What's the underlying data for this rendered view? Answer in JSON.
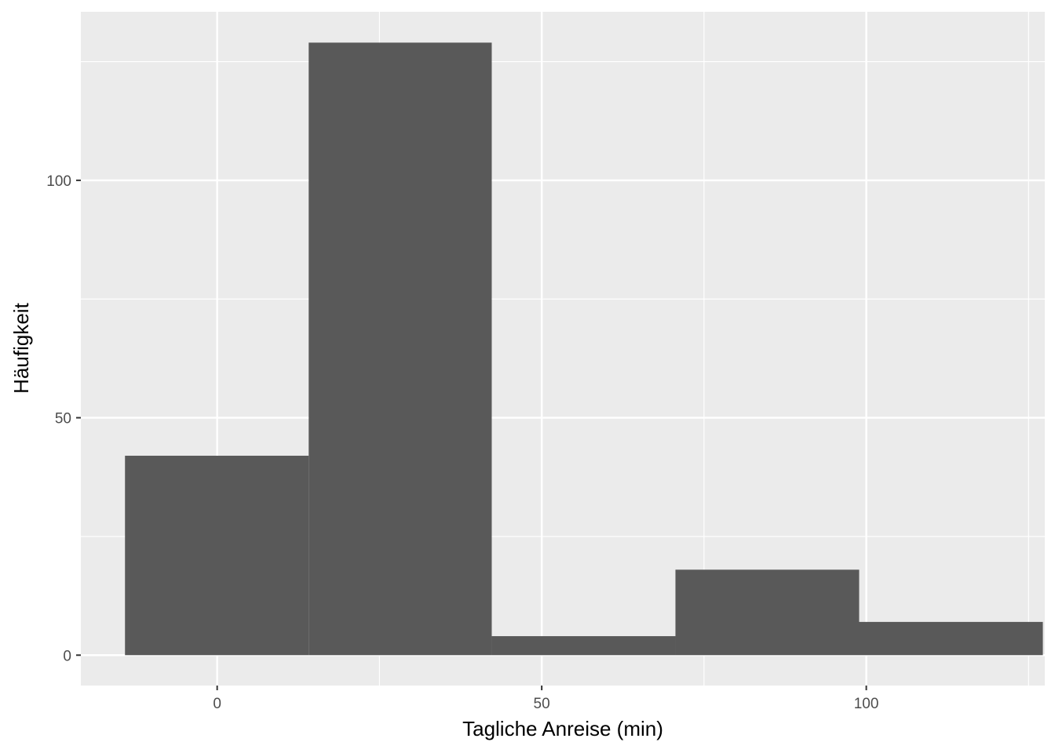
{
  "chart_data": {
    "type": "bar",
    "subtype": "histogram",
    "title": "",
    "xlabel": "Tagliche Anreise (min)",
    "ylabel": "Häufigkeit",
    "xlim": [
      -21,
      127.5
    ],
    "ylim": [
      -6.4,
      135.5
    ],
    "x_ticks": [
      0,
      50,
      100
    ],
    "x_tick_labels": [
      "0",
      "50",
      "100"
    ],
    "y_ticks": [
      0,
      50,
      100
    ],
    "y_tick_labels": [
      "0",
      "50",
      "100"
    ],
    "x_minor": [
      25,
      75,
      125
    ],
    "y_minor": [
      25,
      75,
      125
    ],
    "grid": true,
    "bins": [
      {
        "x0": -14.2,
        "x1": 14.1,
        "count": 42
      },
      {
        "x0": 14.1,
        "x1": 42.3,
        "count": 129
      },
      {
        "x0": 42.3,
        "x1": 70.6,
        "count": 4
      },
      {
        "x0": 70.6,
        "x1": 98.9,
        "count": 18
      },
      {
        "x0": 98.9,
        "x1": 127.2,
        "count": 7
      }
    ],
    "colors": {
      "panel_background": "#ebebeb",
      "grid_major": "#ffffff",
      "bar_fill": "#595959",
      "tick_text": "#4d4d4d",
      "tick_mark": "#333333"
    }
  }
}
